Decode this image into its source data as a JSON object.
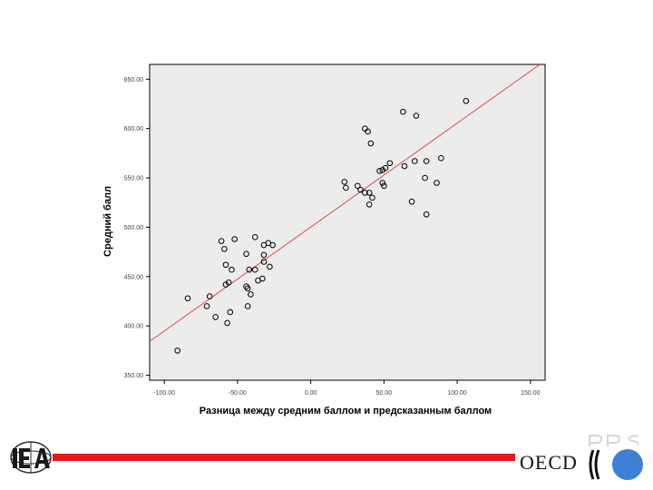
{
  "chart_data": {
    "type": "scatter",
    "xlabel": "Разница между средним баллом и предсказанным баллом",
    "ylabel": "Средний балл",
    "xlim": [
      -110,
      160
    ],
    "ylim": [
      345,
      665
    ],
    "xticks": [
      -100,
      -50,
      0,
      50,
      100,
      150
    ],
    "yticks": [
      350,
      400,
      450,
      500,
      550,
      600,
      650
    ],
    "xtick_labels": [
      "-100.00",
      "-50.00",
      "0.00",
      "50.00",
      "100.00",
      "150.00"
    ],
    "ytick_labels": [
      "350.00",
      "400.00",
      "450.00",
      "500.00",
      "550.00",
      "600.00",
      "650.00"
    ],
    "grid": false,
    "background": "#ececec",
    "marker_color": "#000000",
    "fit_line": {
      "color": "#e34a4a",
      "x": [
        -110,
        160
      ],
      "y": [
        384.3,
        668.7
      ]
    },
    "points": [
      {
        "x": -91,
        "y": 375
      },
      {
        "x": -84,
        "y": 428
      },
      {
        "x": -71,
        "y": 420
      },
      {
        "x": -69,
        "y": 430
      },
      {
        "x": -65,
        "y": 409
      },
      {
        "x": -61,
        "y": 486
      },
      {
        "x": -59,
        "y": 478
      },
      {
        "x": -58,
        "y": 462
      },
      {
        "x": -58,
        "y": 442
      },
      {
        "x": -57,
        "y": 403
      },
      {
        "x": -56,
        "y": 444
      },
      {
        "x": -55,
        "y": 414
      },
      {
        "x": -54,
        "y": 457
      },
      {
        "x": -52,
        "y": 488
      },
      {
        "x": -44,
        "y": 473
      },
      {
        "x": -44,
        "y": 440
      },
      {
        "x": -43,
        "y": 438
      },
      {
        "x": -43,
        "y": 420
      },
      {
        "x": -42,
        "y": 457
      },
      {
        "x": -41,
        "y": 432
      },
      {
        "x": -38,
        "y": 490
      },
      {
        "x": -38,
        "y": 457
      },
      {
        "x": -36,
        "y": 446
      },
      {
        "x": -33,
        "y": 448
      },
      {
        "x": -32,
        "y": 472
      },
      {
        "x": -32,
        "y": 465
      },
      {
        "x": -32,
        "y": 482
      },
      {
        "x": -29,
        "y": 484
      },
      {
        "x": -28,
        "y": 460
      },
      {
        "x": -26,
        "y": 482
      },
      {
        "x": 23,
        "y": 546
      },
      {
        "x": 24,
        "y": 540
      },
      {
        "x": 32,
        "y": 542
      },
      {
        "x": 34,
        "y": 538
      },
      {
        "x": 37,
        "y": 535
      },
      {
        "x": 37,
        "y": 600
      },
      {
        "x": 39,
        "y": 597
      },
      {
        "x": 40,
        "y": 523
      },
      {
        "x": 40,
        "y": 535
      },
      {
        "x": 41,
        "y": 585
      },
      {
        "x": 42,
        "y": 530
      },
      {
        "x": 47,
        "y": 557
      },
      {
        "x": 49,
        "y": 558
      },
      {
        "x": 49,
        "y": 545
      },
      {
        "x": 50,
        "y": 542
      },
      {
        "x": 51,
        "y": 560
      },
      {
        "x": 54,
        "y": 565
      },
      {
        "x": 63,
        "y": 617
      },
      {
        "x": 64,
        "y": 562
      },
      {
        "x": 69,
        "y": 526
      },
      {
        "x": 71,
        "y": 567
      },
      {
        "x": 72,
        "y": 613
      },
      {
        "x": 78,
        "y": 550
      },
      {
        "x": 79,
        "y": 567
      },
      {
        "x": 79,
        "y": 513
      },
      {
        "x": 86,
        "y": 545
      },
      {
        "x": 89,
        "y": 570
      },
      {
        "x": 106,
        "y": 628
      }
    ]
  }
}
